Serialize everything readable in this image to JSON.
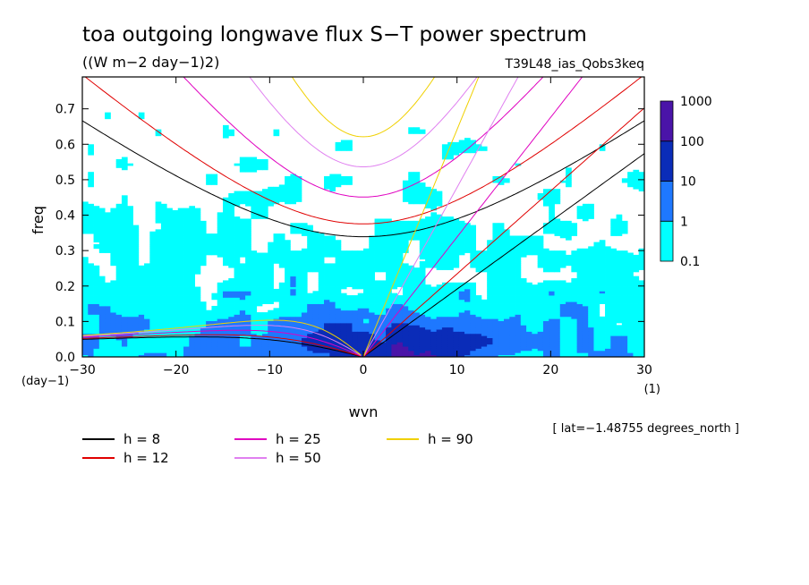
{
  "chart_data": {
    "type": "heatmap",
    "title": "toa outgoing longwave flux S−T power spectrum",
    "subtitle": "((W m−2 day−1)2)",
    "experiment": "T39L48_ias_Qobs3keq",
    "xlabel": "wvn",
    "ylabel": "freq",
    "x_units": "(1)",
    "y_units": "(day−1)",
    "xlim": [
      -30,
      30
    ],
    "ylim": [
      0.0,
      0.79
    ],
    "x_ticks": [
      -30,
      -20,
      -10,
      0,
      10,
      20,
      30
    ],
    "x_tick_labels": [
      "−30",
      "−20",
      "−10",
      "0",
      "10",
      "20",
      "30"
    ],
    "y_ticks": [
      0.0,
      0.1,
      0.2,
      0.3,
      0.4,
      0.5,
      0.6,
      0.7
    ],
    "y_tick_labels": [
      "0.0",
      "0.1",
      "0.2",
      "0.3",
      "0.4",
      "0.5",
      "0.6",
      "0.7"
    ],
    "location_note": "[ lat=−1.48755 degrees_north ]",
    "colorbar": {
      "levels": [
        "0.1",
        "1",
        "10",
        "100",
        "1000"
      ],
      "colors": [
        "#00ffff",
        "#1e78ff",
        "#0a2cb8",
        "#4a14a8"
      ]
    },
    "dispersion_curves": [
      {
        "label": "h =  8",
        "h": 8,
        "color": "#000000"
      },
      {
        "label": "h = 12",
        "h": 12,
        "color": "#e00000"
      },
      {
        "label": "h = 25",
        "h": 25,
        "color": "#e000c0"
      },
      {
        "label": "h = 50",
        "h": 50,
        "color": "#e080f0"
      },
      {
        "label": "h = 90",
        "h": 90,
        "color": "#f0d000"
      }
    ]
  }
}
